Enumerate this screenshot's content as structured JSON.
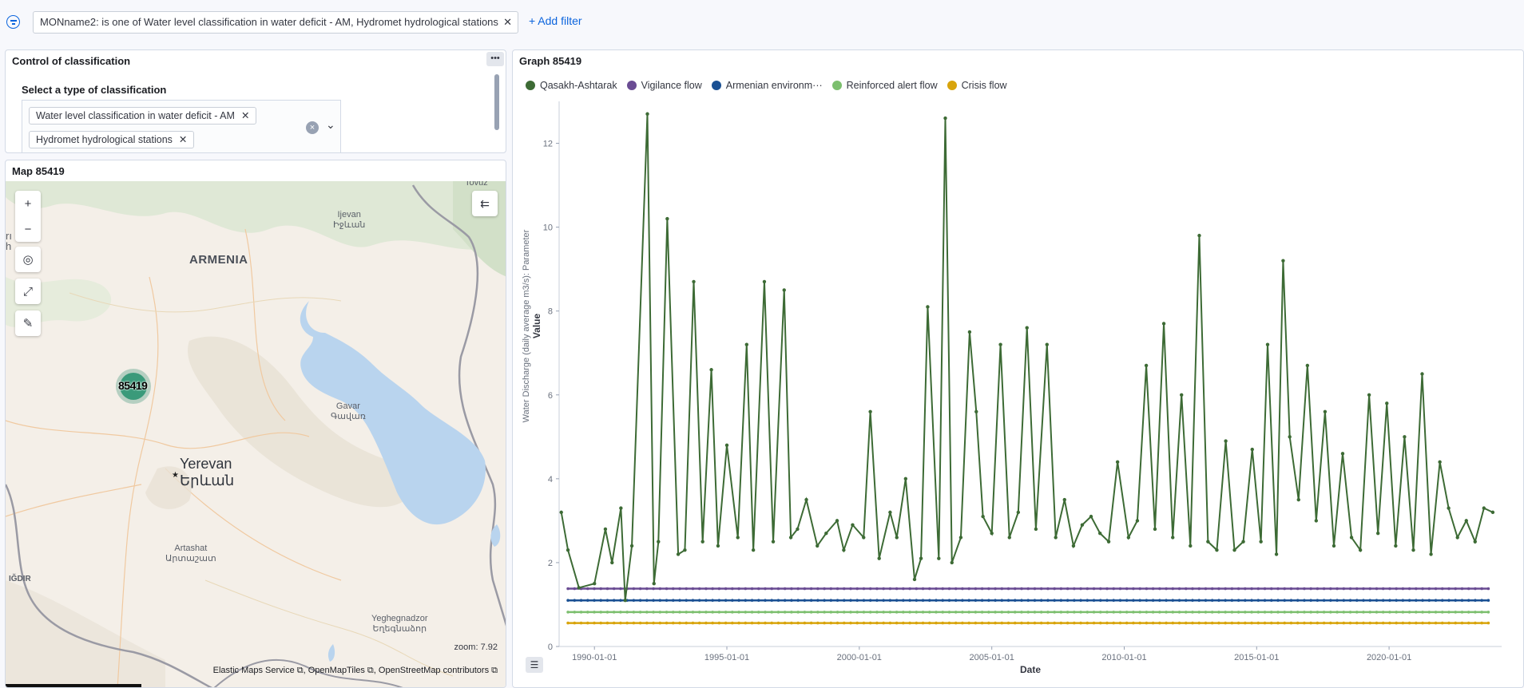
{
  "filter_bar": {
    "pill_text": "MONname2: is one of Water level classification in water deficit - AM, Hydromet hydrological stations",
    "remove_glyph": "✕",
    "add_filter_label": "+ Add filter"
  },
  "control_panel": {
    "title": "Control of classification",
    "menu_glyph": "•••",
    "select_label": "Select a type of classification",
    "selected_options": [
      {
        "label": "Water level classification in water deficit - AM"
      },
      {
        "label": "Hydromet hydrological stations"
      }
    ],
    "chip_remove_glyph": "✕",
    "clear_glyph": "×",
    "caret_glyph": "⌄"
  },
  "map_panel": {
    "title": "Map 85419",
    "country_label": "ARMENIA",
    "cluster_label": "85419",
    "places": {
      "ijevan": "Ijevan\nԻջևան",
      "gavar": "Gavar\nԳավառ",
      "artashat": "Artashat\nԱրտաշատ",
      "yeghegnadzor": "Yeghegnadzor\nԵղեգնաձոր",
      "igdir": "IĞDIR",
      "tovuz": "Tovuz",
      "yerevan": "Yerevan",
      "yerevan_arm": "Երևան",
      "edge_left": "rı\nh"
    },
    "zoom_label": "zoom:",
    "zoom_value": "7.92",
    "attribution": "Elastic Maps Service ⧉, OpenMapTiles ⧉, OpenStreetMap contributors ⧉",
    "controls": {
      "zoom_in": "+",
      "zoom_out": "−",
      "locate": "◎",
      "fit": "⤢",
      "tool": "✎",
      "layers": "⇇"
    }
  },
  "graph_panel": {
    "title": "Graph 85419",
    "list_glyph": "☰"
  },
  "colors": {
    "qasakh": "#3d6b35",
    "vigilance": "#6a4c93",
    "armenian": "#1a5093",
    "reinforced": "#7cbf6e",
    "crisis": "#d8a40c",
    "accent": "#0b64dd"
  },
  "chart_data": {
    "type": "line",
    "xlabel": "Date",
    "ylabel": "Value",
    "ylabel_secondary": "Water Discharge (daily average m3/s): Parameter",
    "x_ticks": [
      "1990-01-01",
      "1995-01-01",
      "2000-01-01",
      "2005-01-01",
      "2010-01-01",
      "2015-01-01",
      "2020-01-01"
    ],
    "y_ticks": [
      0,
      2,
      4,
      6,
      8,
      10,
      12
    ],
    "ylim": [
      0,
      13
    ],
    "xlim": [
      "1988-09-01",
      "2024-04-01"
    ],
    "legend_position": "top-left",
    "series": [
      {
        "name": "Qasakh-Ashtarak",
        "x": [
          "1988-10-01",
          "1989-01-01",
          "1989-06-01",
          "1990-01-01",
          "1990-06-01",
          "1990-09-01",
          "1991-01-01",
          "1991-03-01",
          "1991-06-01",
          "1992-01-01",
          "1992-04-01",
          "1992-06-01",
          "1992-10-01",
          "1993-03-01",
          "1993-06-01",
          "1993-10-01",
          "1994-02-01",
          "1994-06-01",
          "1994-09-01",
          "1995-01-01",
          "1995-06-01",
          "1995-10-01",
          "1996-01-01",
          "1996-06-01",
          "1996-10-01",
          "1997-03-01",
          "1997-06-01",
          "1997-09-01",
          "1998-01-01",
          "1998-06-01",
          "1998-10-01",
          "1999-03-01",
          "1999-06-01",
          "1999-10-01",
          "2000-03-01",
          "2000-06-01",
          "2000-10-01",
          "2001-03-01",
          "2001-06-01",
          "2001-10-01",
          "2002-02-01",
          "2002-05-01",
          "2002-08-01",
          "2003-01-01",
          "2003-04-01",
          "2003-07-01",
          "2003-11-01",
          "2004-03-01",
          "2004-06-01",
          "2004-09-01",
          "2005-01-01",
          "2005-05-01",
          "2005-09-01",
          "2006-01-01",
          "2006-05-01",
          "2006-09-01",
          "2007-02-01",
          "2007-06-01",
          "2007-10-01",
          "2008-02-01",
          "2008-06-01",
          "2008-10-01",
          "2009-02-01",
          "2009-06-01",
          "2009-10-01",
          "2010-03-01",
          "2010-07-01",
          "2010-11-01",
          "2011-03-01",
          "2011-07-01",
          "2011-11-01",
          "2012-03-01",
          "2012-07-01",
          "2012-11-01",
          "2013-03-01",
          "2013-07-01",
          "2013-11-01",
          "2014-03-01",
          "2014-07-01",
          "2014-11-01",
          "2015-03-01",
          "2015-06-01",
          "2015-10-01",
          "2016-01-01",
          "2016-04-01",
          "2016-08-01",
          "2016-12-01",
          "2017-04-01",
          "2017-08-01",
          "2017-12-01",
          "2018-04-01",
          "2018-08-01",
          "2018-12-01",
          "2019-04-01",
          "2019-08-01",
          "2019-12-01",
          "2020-04-01",
          "2020-08-01",
          "2020-12-01",
          "2021-04-01",
          "2021-08-01",
          "2021-12-01",
          "2022-04-01",
          "2022-08-01",
          "2022-12-01",
          "2023-04-01",
          "2023-08-01",
          "2023-12-01"
        ],
        "values": [
          3.2,
          2.3,
          1.4,
          1.5,
          2.8,
          2.0,
          3.3,
          1.1,
          2.4,
          12.7,
          1.5,
          2.5,
          10.2,
          2.2,
          2.3,
          8.7,
          2.5,
          6.6,
          2.4,
          4.8,
          2.6,
          7.2,
          2.3,
          8.7,
          2.5,
          8.5,
          2.6,
          2.8,
          3.5,
          2.4,
          2.7,
          3.0,
          2.3,
          2.9,
          2.6,
          5.6,
          2.1,
          3.2,
          2.6,
          4.0,
          1.6,
          2.1,
          8.1,
          2.1,
          12.6,
          2.0,
          2.6,
          7.5,
          5.6,
          3.1,
          2.7,
          7.2,
          2.6,
          3.2,
          7.6,
          2.8,
          7.2,
          2.6,
          3.5,
          2.4,
          2.9,
          3.1,
          2.7,
          2.5,
          4.4,
          2.6,
          3.0,
          6.7,
          2.8,
          7.7,
          2.6,
          6.0,
          2.4,
          9.8,
          2.5,
          2.3,
          4.9,
          2.3,
          2.5,
          4.7,
          2.5,
          7.2,
          2.2,
          9.2,
          5.0,
          3.5,
          6.7,
          3.0,
          5.6,
          2.4,
          4.6,
          2.6,
          2.3,
          6.0,
          2.7,
          5.8,
          2.4,
          5.0,
          2.3,
          6.5,
          2.2,
          4.4,
          3.3,
          2.6,
          3.0,
          2.5,
          3.3,
          3.2
        ]
      },
      {
        "name": "Vigilance flow",
        "x": [
          "1989-01-01",
          "2023-10-01"
        ],
        "values": [
          1.38,
          1.38
        ]
      },
      {
        "name": "Armenian environm···",
        "x": [
          "1989-01-01",
          "2023-10-01"
        ],
        "values": [
          1.1,
          1.1
        ]
      },
      {
        "name": "Reinforced alert flow",
        "x": [
          "1989-01-01",
          "2023-10-01"
        ],
        "values": [
          0.82,
          0.82
        ]
      },
      {
        "name": "Crisis flow",
        "x": [
          "1989-01-01",
          "2023-10-01"
        ],
        "values": [
          0.56,
          0.56
        ]
      }
    ]
  }
}
